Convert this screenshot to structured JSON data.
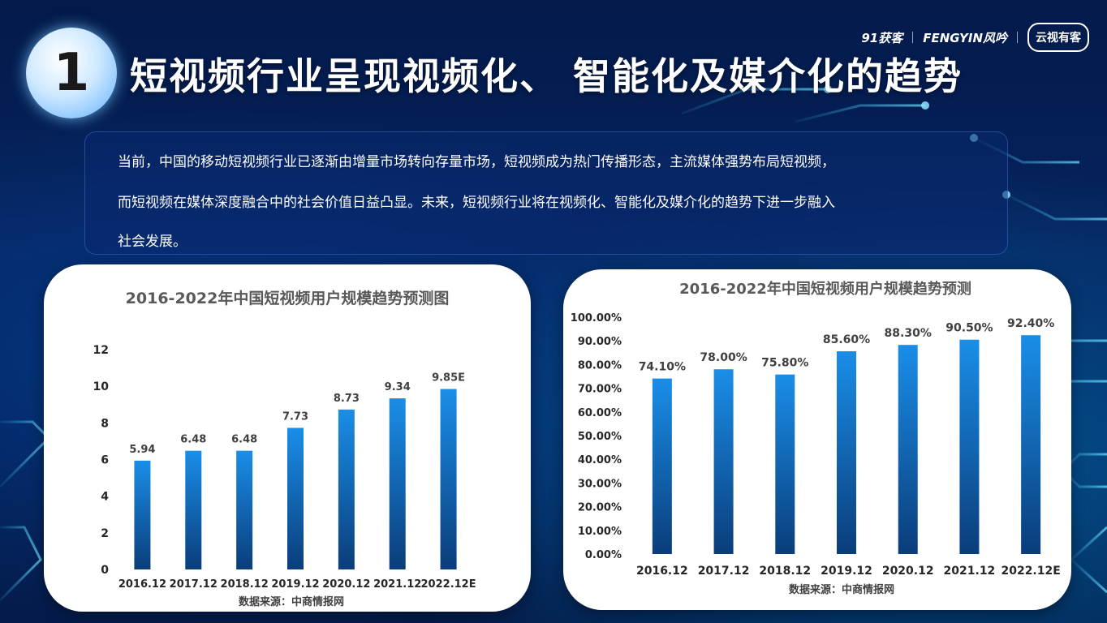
{
  "title_number": "1",
  "page_title": "短视频行业呈现视频化、 智能化及媒介化的趋势",
  "logos": {
    "logo1": "91获客",
    "logo2": "FENGYIN风吟",
    "logo3": "云视有客"
  },
  "intro": {
    "line1": "当前，中国的移动短视频行业已逐渐由增量市场转向存量市场，短视频成为热门传播形态，主流媒体强势布局短视频，",
    "line2": "而短视频在媒体深度融合中的社会价值日益凸显。未来，短视频行业将在视频化、智能化及媒介化的趋势下进一步融入",
    "line3": "社会发展。"
  },
  "colors": {
    "bar_top": "#1a8ee8",
    "bar_bottom": "#0a3d7a",
    "title_text": "#595959"
  },
  "chart_data": [
    {
      "type": "bar",
      "title": "2016-2022年中国短视频用户规模趋势预测图",
      "categories": [
        "2016.12",
        "2017.12",
        "2018.12",
        "2019.12",
        "2020.12",
        "2021.12",
        "2022.12E"
      ],
      "values": [
        5.94,
        6.48,
        6.48,
        7.73,
        8.73,
        9.34,
        9.85
      ],
      "data_labels": [
        "5.94",
        "6.48",
        "6.48",
        "7.73",
        "8.73",
        "9.34",
        "9.85E"
      ],
      "yticks": [
        "0",
        "2",
        "4",
        "6",
        "8",
        "10",
        "12"
      ],
      "ylim": [
        0,
        12
      ],
      "grid": false,
      "source": "数据来源：中商情报网"
    },
    {
      "type": "bar",
      "title": "2016-2022年中国短视频用户规模趋势预测",
      "categories": [
        "2016.12",
        "2017.12",
        "2018.12",
        "2019.12",
        "2020.12",
        "2021.12",
        "2022.12E"
      ],
      "values": [
        74.1,
        78.0,
        75.8,
        85.6,
        88.3,
        90.5,
        92.4
      ],
      "data_labels": [
        "74.10%",
        "78.00%",
        "75.80%",
        "85.60%",
        "88.30%",
        "90.50%",
        "92.40%"
      ],
      "yticks": [
        "0.00%",
        "10.00%",
        "20.00%",
        "30.00%",
        "40.00%",
        "50.00%",
        "60.00%",
        "70.00%",
        "80.00%",
        "90.00%",
        "100.00%"
      ],
      "ylim": [
        0,
        100
      ],
      "grid": false,
      "source": "数据来源：中商情报网"
    }
  ]
}
